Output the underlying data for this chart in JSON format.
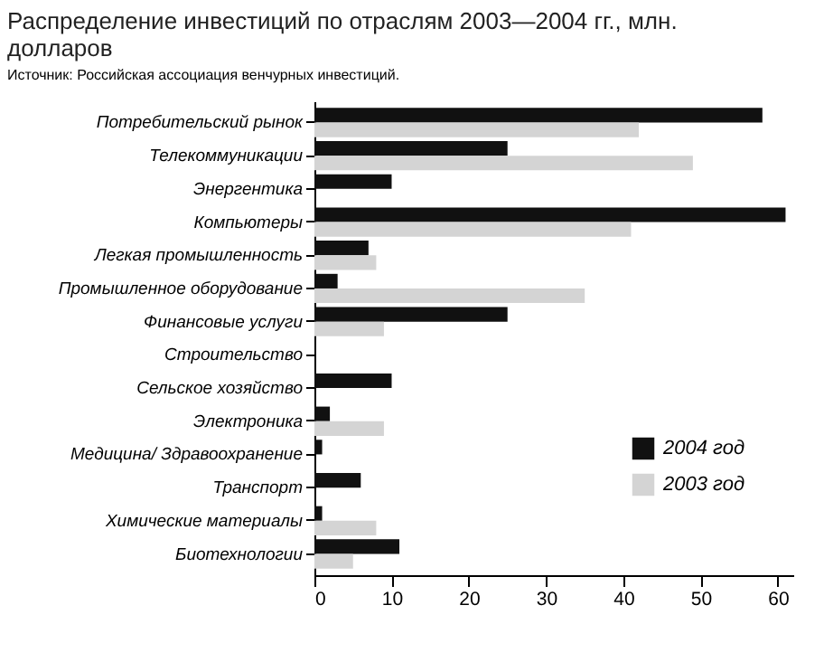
{
  "chart_data": {
    "type": "bar",
    "orientation": "horizontal",
    "title": "Распределение инвестиций по отраслям 2003—2004 гг., млн. долларов",
    "subtitle": "Источник: Российская ассоциация венчурных инвестиций.",
    "categories": [
      "Потребительский рынок",
      "Телекоммуникации",
      "Энергентика",
      "Компьютеры",
      "Легкая промышленность",
      "Промышленное оборудование",
      "Финансовые услуги",
      "Строительство",
      "Сельское хозяйство",
      "Электроника",
      "Медицина/ Здравоохранение",
      "Транспорт",
      "Химические материалы",
      "Биотехнологии"
    ],
    "series": [
      {
        "name": "2004 год",
        "color": "#111111",
        "values": [
          58,
          25,
          10,
          61,
          7,
          3,
          25,
          0,
          10,
          2,
          1,
          6,
          1,
          11
        ]
      },
      {
        "name": "2003 год",
        "color": "#d4d4d4",
        "values": [
          42,
          49,
          0,
          41,
          8,
          35,
          9,
          0,
          0,
          9,
          0,
          0,
          8,
          5
        ]
      }
    ],
    "xlim": [
      0,
      62
    ],
    "xticks": [
      0,
      10,
      20,
      30,
      40,
      50,
      60
    ],
    "grid": false,
    "legend": "right"
  }
}
